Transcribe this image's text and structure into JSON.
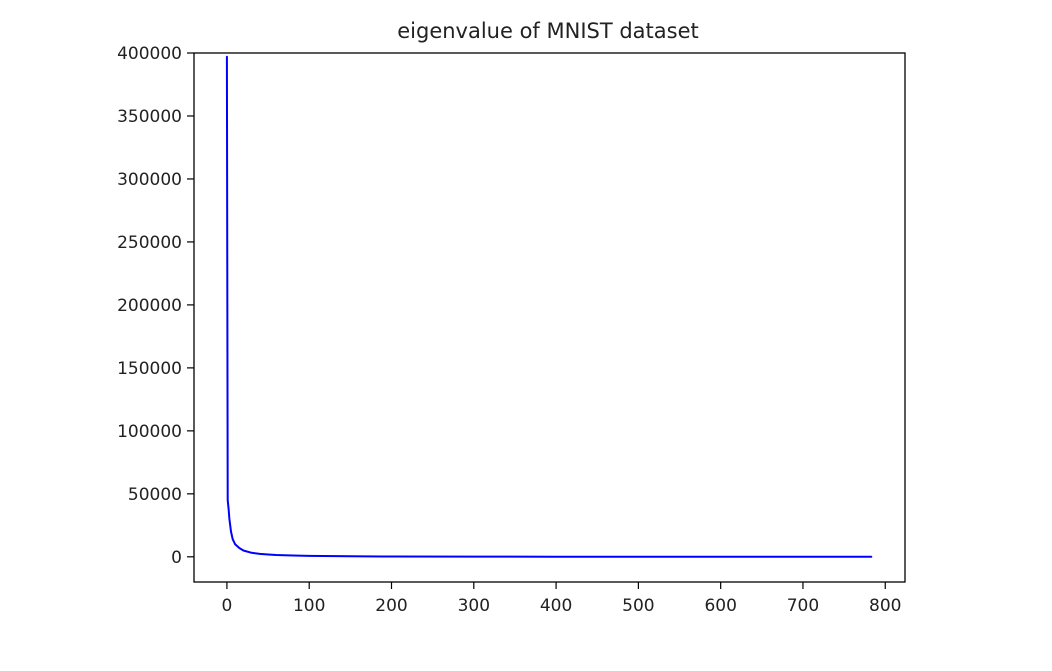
{
  "chart_data": {
    "type": "line",
    "title": "eigenvalue of MNIST dataset",
    "xlabel": "",
    "ylabel": "",
    "xlim": [
      -40,
      824
    ],
    "ylim": [
      -20000,
      400000
    ],
    "xticks": [
      0,
      100,
      200,
      300,
      400,
      500,
      600,
      700,
      800
    ],
    "yticks": [
      0,
      50000,
      100000,
      150000,
      200000,
      250000,
      300000,
      350000,
      400000
    ],
    "grid": false,
    "series": [
      {
        "color": "#0000ff",
        "x": [
          0,
          1,
          2,
          3,
          5,
          7,
          10,
          15,
          20,
          30,
          40,
          50,
          60,
          80,
          100,
          150,
          200,
          300,
          400,
          500,
          600,
          700,
          783
        ],
        "y": [
          397000,
          45000,
          38000,
          30000,
          20000,
          14000,
          10000,
          7000,
          5000,
          3200,
          2300,
          1800,
          1400,
          1000,
          700,
          400,
          250,
          150,
          100,
          60,
          30,
          10,
          0
        ]
      }
    ]
  }
}
